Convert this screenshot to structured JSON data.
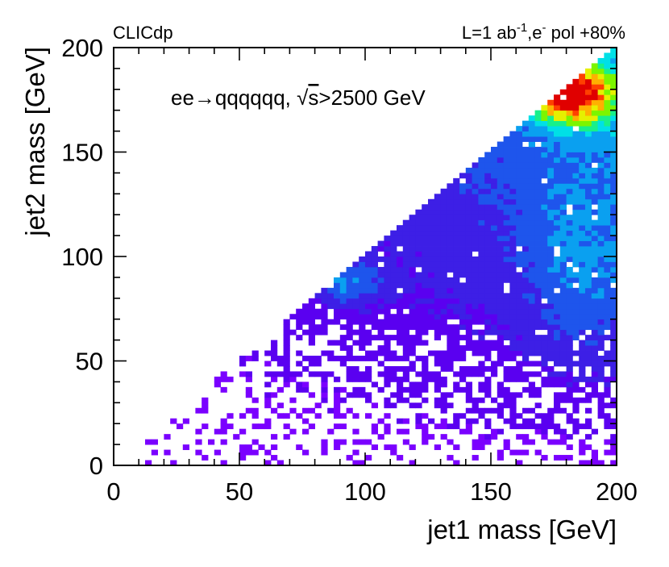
{
  "chart_data": {
    "type": "heatmap",
    "title": "",
    "experiment_label": "CLICdp",
    "luminosity": {
      "prefix": "L=1 ab",
      "exponent": "-1",
      "separator": ",e",
      "charge": "-",
      "suffix": " pol +80%"
    },
    "process": {
      "prefix": "ee",
      "arrow": "→",
      "final_state": "qqqqqq, ",
      "root": "√",
      "sqrt_arg": "s",
      "cut": ">2500 GeV"
    },
    "xlabel": "jet1 mass [GeV]",
    "ylabel": "jet2 mass [GeV]",
    "xlim": [
      0,
      200
    ],
    "ylim": [
      0,
      200
    ],
    "x_ticks": [
      0,
      50,
      100,
      150,
      200
    ],
    "y_ticks": [
      0,
      50,
      100,
      150,
      200
    ],
    "x_tick_labels": [
      "0",
      "50",
      "100",
      "150",
      "200"
    ],
    "y_tick_labels": [
      "0",
      "50",
      "100",
      "150",
      "200"
    ],
    "bin_width_gev": 2.5,
    "colormap": [
      "#7a00ff",
      "#5a00f0",
      "#3d1fe6",
      "#1e55ec",
      "#0aa0f0",
      "#00e0e6",
      "#18f08a",
      "#7cf500",
      "#e6f000",
      "#ffb000",
      "#ff4000",
      "#e00000"
    ],
    "features": {
      "region": "jet2 mass <= jet1 mass (kinematic ordering, empty above diagonal)",
      "primary_peak": {
        "x": 182,
        "y": 178,
        "relative_density": 1.0
      },
      "secondary_cluster": {
        "x": 93,
        "y": 88,
        "relative_density": 0.2
      },
      "sparse_below_y": 70
    }
  }
}
